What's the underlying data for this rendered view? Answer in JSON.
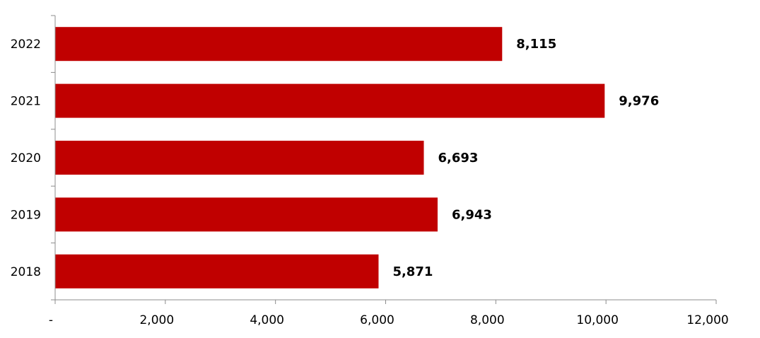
{
  "chart_data": {
    "type": "bar",
    "orientation": "horizontal",
    "categories": [
      "2022",
      "2021",
      "2020",
      "2019",
      "2018"
    ],
    "values": [
      8115,
      9976,
      6693,
      6943,
      5871
    ],
    "value_labels": [
      "8,115",
      "9,976",
      "6,693",
      "6,943",
      "5,871"
    ],
    "x_ticks": [
      0,
      2000,
      4000,
      6000,
      8000,
      10000,
      12000
    ],
    "x_tick_labels": [
      "-",
      "2,000",
      "4,000",
      "6,000",
      "8,000",
      "10,000",
      "12,000"
    ],
    "xlim": [
      0,
      12000
    ],
    "grid": false,
    "legend": "none",
    "bar_color": "#C00000",
    "title": "",
    "xlabel": "",
    "ylabel": ""
  }
}
